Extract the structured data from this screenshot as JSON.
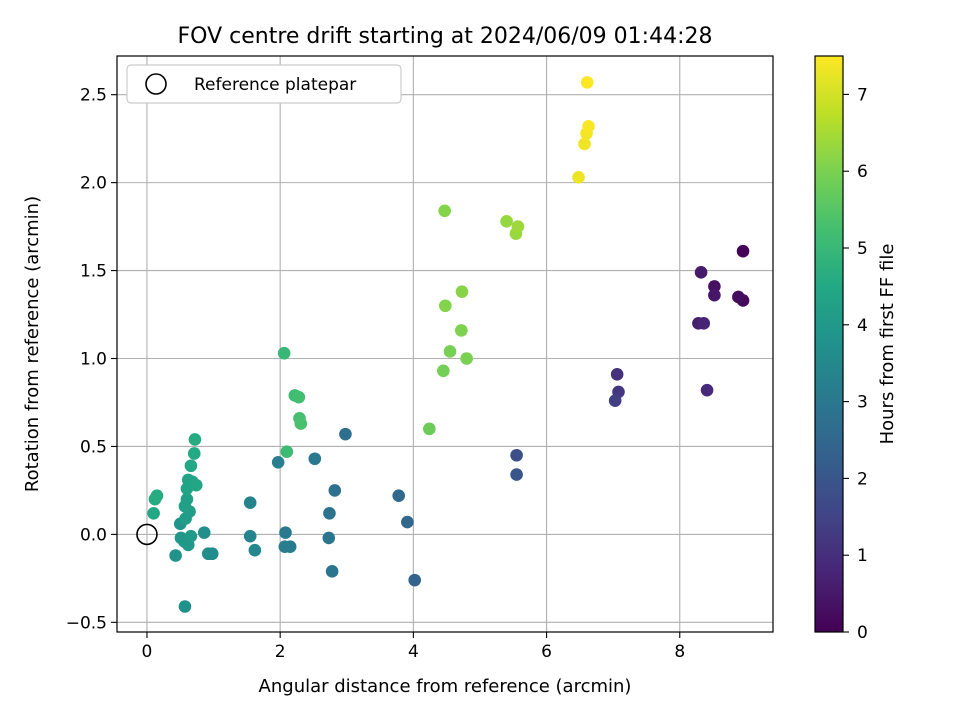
{
  "chart_data": {
    "type": "scatter",
    "title": "FOV centre drift starting at 2024/06/09 01:44:28",
    "xlabel": "Angular distance from reference (arcmin)",
    "ylabel": "Rotation from reference (arcmin)",
    "xlim": [
      -0.45,
      9.4
    ],
    "ylim": [
      -0.555,
      2.72
    ],
    "xticks": [
      0,
      2,
      4,
      6,
      8
    ],
    "xtick_labels": [
      "0",
      "2",
      "4",
      "6",
      "8"
    ],
    "yticks": [
      -0.5,
      0.0,
      0.5,
      1.0,
      1.5,
      2.0,
      2.5
    ],
    "ytick_labels": [
      "−0.5",
      "0.0",
      "0.5",
      "1.0",
      "1.5",
      "2.0",
      "2.5"
    ],
    "grid": true,
    "legend": {
      "position": "upper-left",
      "entries": [
        "Reference platepar"
      ]
    },
    "reference_point": {
      "x": 0,
      "y": 0,
      "marker": "open-circle"
    },
    "colorbar": {
      "label": "Hours from first FF file",
      "colormap": "viridis",
      "range": [
        0,
        7.5
      ],
      "ticks": [
        0,
        1,
        2,
        3,
        4,
        5,
        6,
        7
      ],
      "tick_labels": [
        "0",
        "1",
        "2",
        "3",
        "4",
        "5",
        "6",
        "7"
      ]
    },
    "points": [
      {
        "x": 8.95,
        "y": 1.61,
        "c": 0.05
      },
      {
        "x": 8.95,
        "y": 1.33,
        "c": 0.15
      },
      {
        "x": 8.88,
        "y": 1.35,
        "c": 0.25
      },
      {
        "x": 8.52,
        "y": 1.41,
        "c": 0.35
      },
      {
        "x": 8.52,
        "y": 1.36,
        "c": 0.45
      },
      {
        "x": 8.32,
        "y": 1.49,
        "c": 0.55
      },
      {
        "x": 8.28,
        "y": 1.2,
        "c": 0.65
      },
      {
        "x": 8.36,
        "y": 1.2,
        "c": 0.75
      },
      {
        "x": 8.41,
        "y": 0.82,
        "c": 0.9
      },
      {
        "x": 7.06,
        "y": 0.91,
        "c": 1.05
      },
      {
        "x": 7.08,
        "y": 0.81,
        "c": 1.2
      },
      {
        "x": 7.03,
        "y": 0.76,
        "c": 1.35
      },
      {
        "x": 5.55,
        "y": 0.45,
        "c": 1.8
      },
      {
        "x": 5.55,
        "y": 0.34,
        "c": 2.0
      },
      {
        "x": 4.02,
        "y": -0.26,
        "c": 2.4
      },
      {
        "x": 3.91,
        "y": 0.07,
        "c": 2.5
      },
      {
        "x": 3.78,
        "y": 0.22,
        "c": 2.55
      },
      {
        "x": 2.98,
        "y": 0.57,
        "c": 2.7
      },
      {
        "x": 2.82,
        "y": 0.25,
        "c": 2.75
      },
      {
        "x": 2.74,
        "y": 0.12,
        "c": 2.85
      },
      {
        "x": 2.73,
        "y": -0.02,
        "c": 2.9
      },
      {
        "x": 2.78,
        "y": -0.21,
        "c": 2.95
      },
      {
        "x": 2.52,
        "y": 0.43,
        "c": 3.0
      },
      {
        "x": 2.08,
        "y": 0.01,
        "c": 3.05
      },
      {
        "x": 2.15,
        "y": -0.07,
        "c": 3.1
      },
      {
        "x": 2.07,
        "y": -0.07,
        "c": 3.15
      },
      {
        "x": 1.97,
        "y": 0.41,
        "c": 3.2
      },
      {
        "x": 1.55,
        "y": 0.18,
        "c": 3.35
      },
      {
        "x": 1.55,
        "y": -0.01,
        "c": 3.4
      },
      {
        "x": 1.62,
        "y": -0.09,
        "c": 3.45
      },
      {
        "x": 0.98,
        "y": -0.11,
        "c": 3.6
      },
      {
        "x": 0.92,
        "y": -0.11,
        "c": 3.65
      },
      {
        "x": 0.86,
        "y": 0.01,
        "c": 3.7
      },
      {
        "x": 0.57,
        "y": -0.41,
        "c": 3.75
      },
      {
        "x": 0.43,
        "y": -0.12,
        "c": 3.8
      },
      {
        "x": 0.5,
        "y": 0.06,
        "c": 3.85
      },
      {
        "x": 0.51,
        "y": -0.02,
        "c": 3.9
      },
      {
        "x": 0.56,
        "y": -0.04,
        "c": 3.95
      },
      {
        "x": 0.62,
        "y": -0.06,
        "c": 4.0
      },
      {
        "x": 0.66,
        "y": -0.01,
        "c": 4.05
      },
      {
        "x": 0.58,
        "y": 0.09,
        "c": 4.1
      },
      {
        "x": 0.64,
        "y": 0.13,
        "c": 4.15
      },
      {
        "x": 0.57,
        "y": 0.16,
        "c": 4.2
      },
      {
        "x": 0.6,
        "y": 0.2,
        "c": 4.25
      },
      {
        "x": 0.6,
        "y": 0.26,
        "c": 4.3
      },
      {
        "x": 0.62,
        "y": 0.31,
        "c": 4.35
      },
      {
        "x": 0.68,
        "y": 0.3,
        "c": 4.4
      },
      {
        "x": 0.74,
        "y": 0.28,
        "c": 4.45
      },
      {
        "x": 0.66,
        "y": 0.39,
        "c": 4.5
      },
      {
        "x": 0.71,
        "y": 0.46,
        "c": 4.55
      },
      {
        "x": 0.72,
        "y": 0.54,
        "c": 4.6
      },
      {
        "x": 0.1,
        "y": 0.12,
        "c": 4.5
      },
      {
        "x": 0.12,
        "y": 0.2,
        "c": 4.55
      },
      {
        "x": 0.15,
        "y": 0.22,
        "c": 4.6
      },
      {
        "x": 2.06,
        "y": 1.03,
        "c": 5.0
      },
      {
        "x": 2.1,
        "y": 0.47,
        "c": 5.1
      },
      {
        "x": 2.22,
        "y": 0.79,
        "c": 5.15
      },
      {
        "x": 2.28,
        "y": 0.78,
        "c": 5.2
      },
      {
        "x": 2.29,
        "y": 0.66,
        "c": 5.25
      },
      {
        "x": 2.31,
        "y": 0.63,
        "c": 5.3
      },
      {
        "x": 4.24,
        "y": 0.6,
        "c": 5.8
      },
      {
        "x": 4.45,
        "y": 0.93,
        "c": 5.9
      },
      {
        "x": 4.55,
        "y": 1.04,
        "c": 5.95
      },
      {
        "x": 4.8,
        "y": 1.0,
        "c": 6.0
      },
      {
        "x": 4.72,
        "y": 1.16,
        "c": 6.05
      },
      {
        "x": 4.48,
        "y": 1.3,
        "c": 6.1
      },
      {
        "x": 4.73,
        "y": 1.38,
        "c": 6.15
      },
      {
        "x": 4.47,
        "y": 1.84,
        "c": 6.1
      },
      {
        "x": 5.4,
        "y": 1.78,
        "c": 6.3
      },
      {
        "x": 5.54,
        "y": 1.71,
        "c": 6.35
      },
      {
        "x": 5.57,
        "y": 1.75,
        "c": 6.4
      },
      {
        "x": 6.48,
        "y": 2.03,
        "c": 7.3
      },
      {
        "x": 6.57,
        "y": 2.22,
        "c": 7.35
      },
      {
        "x": 6.6,
        "y": 2.28,
        "c": 7.4
      },
      {
        "x": 6.63,
        "y": 2.32,
        "c": 7.45
      },
      {
        "x": 6.61,
        "y": 2.57,
        "c": 7.5
      }
    ]
  }
}
